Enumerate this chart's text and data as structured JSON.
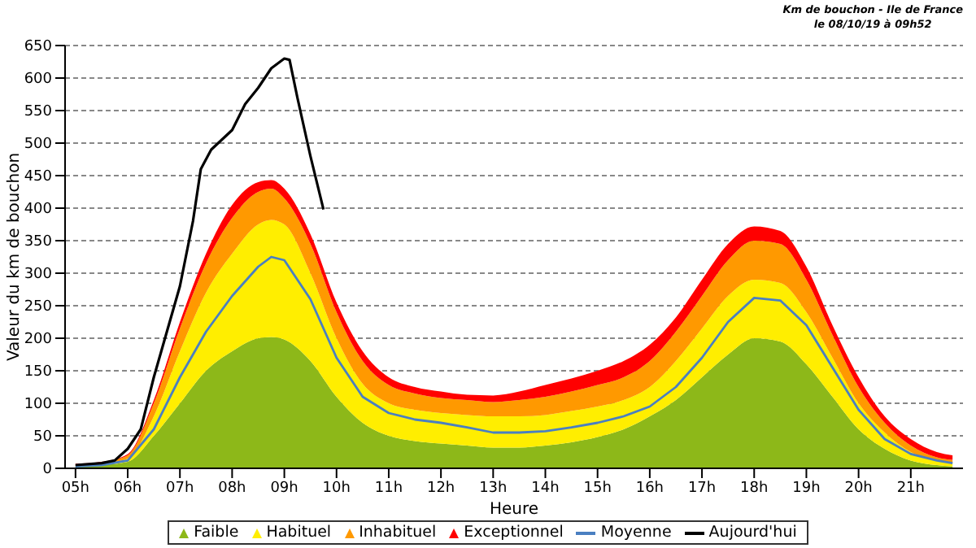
{
  "chart_data": {
    "type": "area",
    "title": "Km de bouchon - Ile de France",
    "subtitle": "le 08/10/19 à 09h52",
    "xlabel": "Heure",
    "ylabel": "Valeur du km de bouchon",
    "x": [
      5,
      5.5,
      6,
      6.5,
      7,
      7.5,
      8,
      8.5,
      8.75,
      9,
      9.5,
      10,
      10.5,
      11,
      11.5,
      12,
      12.5,
      13,
      13.5,
      14,
      14.5,
      15,
      15.5,
      16,
      16.5,
      17,
      17.5,
      18,
      18.5,
      19,
      19.5,
      20,
      20.5,
      21,
      21.5,
      21.8
    ],
    "stacked": true,
    "series": [
      {
        "name": "Faible",
        "color": "#8db819",
        "values": [
          3,
          5,
          10,
          50,
          100,
          150,
          180,
          200,
          202,
          198,
          165,
          110,
          70,
          50,
          42,
          38,
          35,
          32,
          32,
          35,
          40,
          48,
          60,
          80,
          105,
          140,
          175,
          200,
          195,
          160,
          110,
          60,
          30,
          12,
          5,
          3
        ]
      },
      {
        "name": "Habituel",
        "color": "#ffee00",
        "values": [
          1,
          2,
          5,
          30,
          80,
          120,
          150,
          175,
          180,
          177,
          135,
          90,
          60,
          50,
          48,
          47,
          47,
          48,
          48,
          47,
          48,
          47,
          45,
          45,
          60,
          75,
          90,
          90,
          90,
          80,
          60,
          40,
          25,
          13,
          7,
          5
        ]
      },
      {
        "name": "Inhabituel",
        "color": "#ff9900",
        "values": [
          1,
          2,
          5,
          20,
          35,
          45,
          55,
          50,
          48,
          40,
          45,
          40,
          35,
          28,
          25,
          23,
          23,
          22,
          25,
          28,
          30,
          33,
          35,
          40,
          45,
          50,
          55,
          60,
          60,
          50,
          35,
          25,
          15,
          10,
          5,
          5
        ]
      },
      {
        "name": "Exceptionnel",
        "color": "#ff0000",
        "values": [
          2,
          1,
          2,
          5,
          10,
          15,
          20,
          15,
          13,
          15,
          15,
          15,
          15,
          12,
          10,
          10,
          8,
          10,
          13,
          18,
          20,
          22,
          25,
          25,
          22,
          25,
          25,
          22,
          20,
          20,
          15,
          15,
          10,
          10,
          8,
          7
        ]
      },
      {
        "name": "Moyenne",
        "type": "line",
        "color": "#4a7fc1",
        "values": [
          3,
          5,
          12,
          60,
          140,
          210,
          265,
          310,
          325,
          320,
          260,
          170,
          110,
          85,
          75,
          70,
          63,
          55,
          55,
          57,
          63,
          70,
          80,
          95,
          125,
          170,
          225,
          262,
          258,
          220,
          155,
          90,
          45,
          22,
          12,
          8
        ]
      },
      {
        "name": "Aujourd'hui",
        "type": "line",
        "color": "#000000",
        "x": [
          5,
          5.5,
          5.75,
          6,
          6.25,
          6.5,
          6.75,
          7,
          7.25,
          7.4,
          7.6,
          7.8,
          8,
          8.25,
          8.5,
          8.75,
          9,
          9.1,
          9.25,
          9.5,
          9.75
        ],
        "values": [
          5,
          8,
          12,
          30,
          60,
          140,
          210,
          280,
          380,
          460,
          490,
          505,
          520,
          560,
          585,
          615,
          630,
          628,
          570,
          480,
          398
        ]
      }
    ],
    "xlim": [
      4.8,
      22
    ],
    "xticks": [
      {
        "value": 5,
        "label": "05h"
      },
      {
        "value": 6,
        "label": "06h"
      },
      {
        "value": 7,
        "label": "07h"
      },
      {
        "value": 8,
        "label": "08h"
      },
      {
        "value": 9,
        "label": "09h"
      },
      {
        "value": 10,
        "label": "10h"
      },
      {
        "value": 11,
        "label": "11h"
      },
      {
        "value": 12,
        "label": "12h"
      },
      {
        "value": 13,
        "label": "13h"
      },
      {
        "value": 14,
        "label": "14h"
      },
      {
        "value": 15,
        "label": "15h"
      },
      {
        "value": 16,
        "label": "16h"
      },
      {
        "value": 17,
        "label": "17h"
      },
      {
        "value": 18,
        "label": "18h"
      },
      {
        "value": 19,
        "label": "19h"
      },
      {
        "value": 20,
        "label": "20h"
      },
      {
        "value": 21,
        "label": "21h"
      }
    ],
    "ylim": [
      0,
      650
    ],
    "yticks": [
      0,
      50,
      100,
      150,
      200,
      250,
      300,
      350,
      400,
      450,
      500,
      550,
      600,
      650
    ],
    "grid": "y",
    "legend": "bottom",
    "marker": "none",
    "line_style": "solid"
  }
}
